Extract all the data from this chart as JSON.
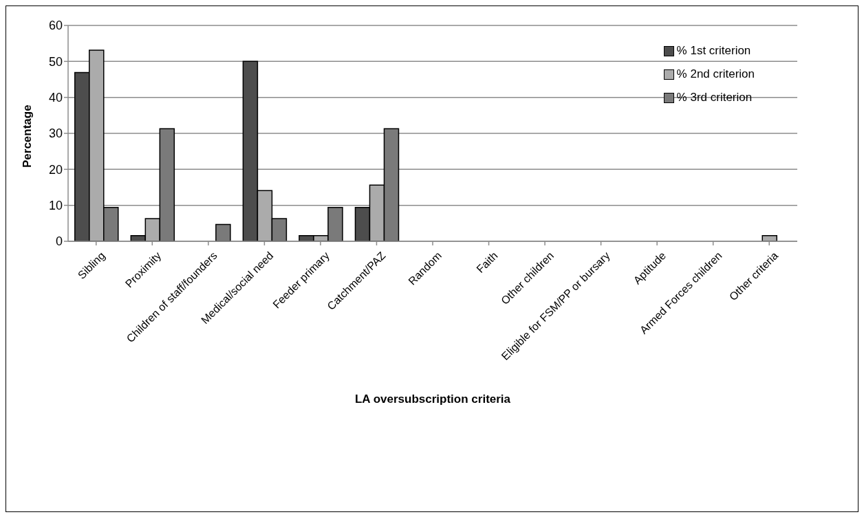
{
  "chart_data": {
    "type": "bar",
    "xlabel": "LA oversubscription criteria",
    "ylabel": "Percentage",
    "categories": [
      "Sibling",
      "Proximity",
      "Children of staff/founders",
      "Medical/social need",
      "Feeder primary",
      "Catchment/PAZ",
      "Random",
      "Faith",
      "Other children",
      "Eligible for FSM/PP or bursary",
      "Aptitude",
      "Armed Forces children",
      "Other criteria"
    ],
    "series": [
      {
        "name": "% 1st criterion",
        "color": "#4d4d4d",
        "values": [
          46.9,
          1.6,
          0,
          50,
          1.6,
          9.4,
          0,
          0,
          0,
          0,
          0,
          0,
          0
        ]
      },
      {
        "name": "% 2nd criterion",
        "color": "#ababab",
        "values": [
          53.1,
          6.3,
          0,
          14.1,
          1.6,
          15.6,
          0,
          0,
          0,
          0,
          0,
          0,
          1.6
        ]
      },
      {
        "name": "% 3rd criterion",
        "color": "#7a7a7a",
        "values": [
          9.4,
          31.3,
          4.7,
          6.3,
          9.4,
          31.3,
          0,
          0,
          0,
          0,
          0,
          0,
          0
        ]
      }
    ],
    "ylim": [
      0,
      60
    ],
    "yticks": [
      0,
      10,
      20,
      30,
      40,
      50,
      60
    ],
    "grid": "y",
    "legend": "top right"
  }
}
